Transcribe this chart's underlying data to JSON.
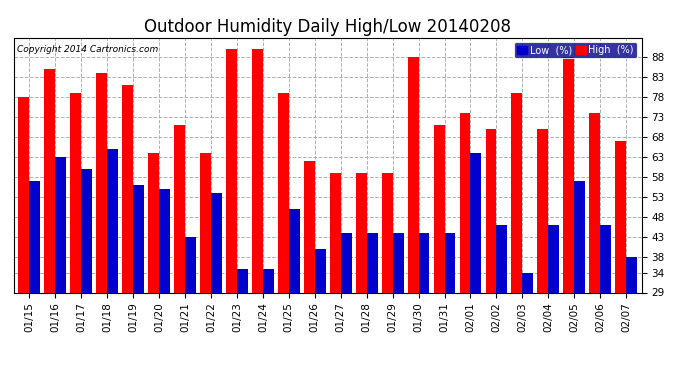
{
  "title": "Outdoor Humidity Daily High/Low 20140208",
  "copyright": "Copyright 2014 Cartronics.com",
  "dates": [
    "01/15",
    "01/16",
    "01/17",
    "01/18",
    "01/19",
    "01/20",
    "01/21",
    "01/22",
    "01/23",
    "01/24",
    "01/25",
    "01/26",
    "01/27",
    "01/28",
    "01/29",
    "01/30",
    "01/31",
    "02/01",
    "02/02",
    "02/03",
    "02/04",
    "02/05",
    "02/06",
    "02/07"
  ],
  "high": [
    78,
    85,
    79,
    84,
    81,
    64,
    71,
    64,
    90,
    90,
    79,
    62,
    59,
    59,
    59,
    88,
    71,
    74,
    70,
    79,
    70,
    88,
    74,
    67
  ],
  "low": [
    57,
    63,
    60,
    65,
    56,
    55,
    43,
    54,
    35,
    35,
    50,
    40,
    44,
    44,
    44,
    44,
    44,
    64,
    46,
    34,
    46,
    57,
    46,
    38
  ],
  "ylim": [
    29,
    93
  ],
  "yticks": [
    29,
    34,
    38,
    43,
    48,
    53,
    58,
    63,
    68,
    73,
    78,
    83,
    88
  ],
  "bar_width": 0.42,
  "high_color": "#ff0000",
  "low_color": "#0000cc",
  "bg_color": "#ffffff",
  "plot_bg_color": "#ffffff",
  "grid_color": "#b0b0b0",
  "title_fontsize": 12,
  "tick_fontsize": 7.5,
  "legend_low_label": "Low  (%)",
  "legend_high_label": "High  (%)"
}
